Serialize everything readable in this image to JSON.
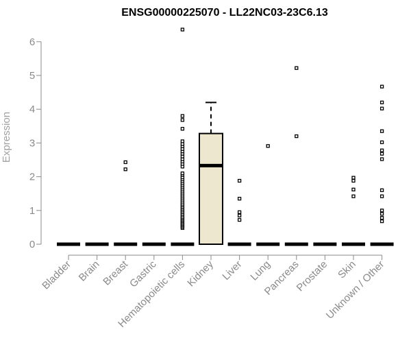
{
  "chart_data": {
    "type": "boxplot",
    "title": "ENSG00000225070 - LL22NC03-23C6.13",
    "xlabel": "",
    "ylabel": "Expression",
    "ylim": [
      0,
      6.5
    ],
    "yticks": [
      0,
      1,
      2,
      3,
      4,
      5,
      6
    ],
    "grid": false,
    "legend": "none",
    "colors": {
      "box_fill": "#ede7cf",
      "stroke": "#000000",
      "axis": "#8a8a8a",
      "title": "#000000"
    },
    "categories": [
      "Bladder",
      "Brain",
      "Breast",
      "Gastric",
      "Hematopoietic cells",
      "Kidney",
      "Liver",
      "Lung",
      "Pancreas",
      "Prostate",
      "Skin",
      "Unknown / Other"
    ],
    "boxes": [
      {
        "category": "Bladder",
        "q1": 0,
        "median": 0,
        "q3": 0,
        "whisker_low": 0,
        "whisker_high": 0,
        "outliers": []
      },
      {
        "category": "Brain",
        "q1": 0,
        "median": 0,
        "q3": 0,
        "whisker_low": 0,
        "whisker_high": 0,
        "outliers": []
      },
      {
        "category": "Breast",
        "q1": 0,
        "median": 0,
        "q3": 0,
        "whisker_low": 0,
        "whisker_high": 0,
        "outliers": [
          2.22,
          2.43
        ]
      },
      {
        "category": "Gastric",
        "q1": 0,
        "median": 0,
        "q3": 0,
        "whisker_low": 0,
        "whisker_high": 0,
        "outliers": []
      },
      {
        "category": "Hematopoietic cells",
        "q1": 0,
        "median": 0,
        "q3": 0,
        "whisker_low": 0,
        "whisker_high": 0,
        "outliers": [
          0.48,
          0.52,
          0.56,
          0.6,
          0.64,
          0.68,
          0.72,
          0.76,
          0.8,
          0.85,
          0.9,
          0.95,
          1.0,
          1.05,
          1.1,
          1.15,
          1.2,
          1.26,
          1.32,
          1.38,
          1.44,
          1.5,
          1.56,
          1.62,
          1.68,
          1.74,
          1.8,
          1.86,
          1.92,
          1.98,
          2.05,
          2.1,
          2.3,
          2.38,
          2.45,
          2.52,
          2.6,
          2.68,
          2.75,
          2.82,
          2.9,
          2.97,
          3.05,
          3.42,
          3.68,
          3.8,
          6.36
        ]
      },
      {
        "category": "Kidney",
        "q1": 0,
        "median": 2.33,
        "q3": 3.28,
        "whisker_low": 0,
        "whisker_high": 4.2,
        "outliers": []
      },
      {
        "category": "Liver",
        "q1": 0,
        "median": 0,
        "q3": 0,
        "whisker_low": 0,
        "whisker_high": 0,
        "outliers": [
          0.72,
          0.85,
          0.95,
          1.35,
          1.88
        ]
      },
      {
        "category": "Lung",
        "q1": 0,
        "median": 0,
        "q3": 0,
        "whisker_low": 0,
        "whisker_high": 0,
        "outliers": [
          2.91
        ]
      },
      {
        "category": "Pancreas",
        "q1": 0,
        "median": 0,
        "q3": 0,
        "whisker_low": 0,
        "whisker_high": 0,
        "outliers": [
          3.2,
          5.22
        ]
      },
      {
        "category": "Prostate",
        "q1": 0,
        "median": 0,
        "q3": 0,
        "whisker_low": 0,
        "whisker_high": 0,
        "outliers": []
      },
      {
        "category": "Skin",
        "q1": 0,
        "median": 0,
        "q3": 0,
        "whisker_low": 0,
        "whisker_high": 0,
        "outliers": [
          1.42,
          1.62,
          1.88,
          1.97
        ]
      },
      {
        "category": "Unknown / Other",
        "q1": 0,
        "median": 0,
        "q3": 0,
        "whisker_low": 0,
        "whisker_high": 0,
        "outliers": [
          0.68,
          0.78,
          0.9,
          1.0,
          1.42,
          1.6,
          2.52,
          2.68,
          2.78,
          3.02,
          3.35,
          4.02,
          4.2,
          4.67
        ]
      }
    ]
  }
}
